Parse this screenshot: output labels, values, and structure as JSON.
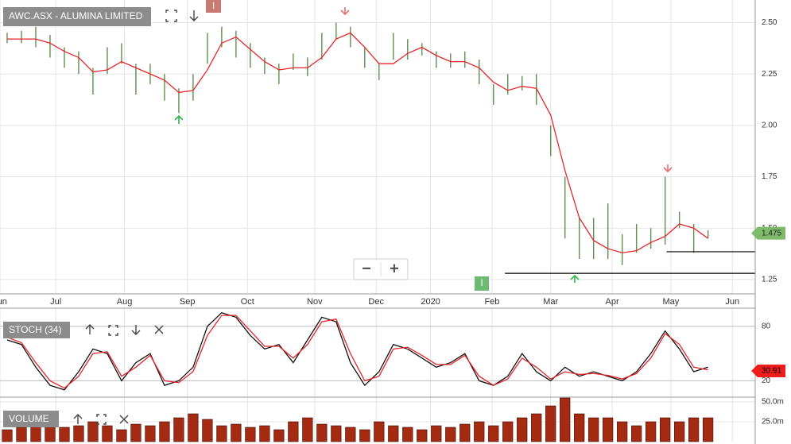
{
  "chart_data": [
    {
      "type": "hilo",
      "title": "AWC.ASX - ALUMINA LIMITED",
      "color": "#5f8f4f",
      "x": [
        0.5,
        1.5,
        2.5,
        3.5,
        4.5,
        5.5,
        6.5,
        7.5,
        8.5,
        9.5,
        10.5,
        11.5,
        12.5,
        13.5,
        14.5,
        15.5,
        16.5,
        17.5,
        18.5,
        19.5,
        20.5,
        21.5,
        22.5,
        23.5,
        24.5,
        25.5,
        26.5,
        27.5,
        28.5,
        29.5,
        30.5,
        31.5,
        32.5,
        33.5,
        34.5,
        35.5,
        36.5,
        37.5,
        38.5,
        39.5,
        40.5,
        41.5,
        42.5,
        43.5,
        44.5,
        45.5,
        46.5,
        47.5,
        48.5,
        49.5
      ],
      "high": [
        2.45,
        2.46,
        2.48,
        2.44,
        2.38,
        2.36,
        2.28,
        2.38,
        2.4,
        2.3,
        2.3,
        2.25,
        2.18,
        2.25,
        2.45,
        2.48,
        2.46,
        2.4,
        2.33,
        2.3,
        2.35,
        2.33,
        2.45,
        2.5,
        2.48,
        2.38,
        2.3,
        2.45,
        2.42,
        2.4,
        2.36,
        2.35,
        2.36,
        2.32,
        2.2,
        2.25,
        2.24,
        2.25,
        2.0,
        1.75,
        1.55,
        1.55,
        1.62,
        1.47,
        1.52,
        1.5,
        1.75,
        1.58,
        1.52,
        1.49
      ],
      "low": [
        2.4,
        2.4,
        2.38,
        2.33,
        2.28,
        2.25,
        2.15,
        2.25,
        2.3,
        2.15,
        2.2,
        2.12,
        2.06,
        2.12,
        2.3,
        2.38,
        2.33,
        2.28,
        2.25,
        2.2,
        2.27,
        2.24,
        2.32,
        2.42,
        2.38,
        2.28,
        2.22,
        2.32,
        2.32,
        2.34,
        2.28,
        2.28,
        2.28,
        2.2,
        2.1,
        2.15,
        2.17,
        2.1,
        1.85,
        1.45,
        1.35,
        1.35,
        1.35,
        1.32,
        1.38,
        1.4,
        1.42,
        1.5,
        1.38,
        1.45
      ],
      "series": [
        {
          "name": "MA",
          "color": "#e8252a",
          "values": [
            2.42,
            2.42,
            2.42,
            2.4,
            2.36,
            2.33,
            2.26,
            2.27,
            2.31,
            2.28,
            2.25,
            2.22,
            2.16,
            2.17,
            2.27,
            2.4,
            2.43,
            2.37,
            2.31,
            2.27,
            2.28,
            2.28,
            2.33,
            2.42,
            2.45,
            2.38,
            2.3,
            2.3,
            2.35,
            2.38,
            2.34,
            2.31,
            2.31,
            2.28,
            2.21,
            2.17,
            2.19,
            2.18,
            2.05,
            1.78,
            1.55,
            1.44,
            1.4,
            1.38,
            1.39,
            1.43,
            1.46,
            1.52,
            1.5,
            1.45
          ]
        }
      ],
      "xlim": [
        0,
        52.8
      ],
      "xticks": [
        {
          "value": 0,
          "label": "Jun"
        },
        {
          "value": 3.9,
          "label": "Jul"
        },
        {
          "value": 8.7,
          "label": "Aug"
        },
        {
          "value": 13.1,
          "label": "Sep"
        },
        {
          "value": 17.3,
          "label": "Oct"
        },
        {
          "value": 22,
          "label": "Nov"
        },
        {
          "value": 26.3,
          "label": "Dec"
        },
        {
          "value": 30.1,
          "label": "2020"
        },
        {
          "value": 34.4,
          "label": "Feb"
        },
        {
          "value": 38.5,
          "label": "Mar"
        },
        {
          "value": 42.8,
          "label": "Apr"
        },
        {
          "value": 46.9,
          "label": "May"
        },
        {
          "value": 51.2,
          "label": "Jun"
        }
      ],
      "ylim": [
        1.18,
        2.61
      ],
      "yticks": [
        {
          "value": 2.5,
          "label": "2.50"
        },
        {
          "value": 2.25,
          "label": "2.25"
        },
        {
          "value": 2.0,
          "label": "2.00"
        },
        {
          "value": 1.75,
          "label": "1.75"
        },
        {
          "value": 1.5,
          "label": "1.50"
        },
        {
          "value": 1.25,
          "label": "1.25"
        }
      ],
      "levels": [
        {
          "value": 1.28,
          "from": 35.3
        },
        {
          "value": 1.385,
          "from": 46.6
        }
      ],
      "last": 1.475,
      "last_color": "#7dbb6a"
    },
    {
      "type": "line",
      "title": "STOCH (34)",
      "series": [
        {
          "name": "%K",
          "color": "#111111",
          "values": [
            65,
            60,
            35,
            15,
            10,
            30,
            55,
            50,
            20,
            40,
            50,
            15,
            20,
            35,
            80,
            95,
            90,
            70,
            55,
            60,
            40,
            65,
            90,
            85,
            40,
            15,
            30,
            60,
            55,
            45,
            35,
            40,
            50,
            20,
            15,
            25,
            50,
            30,
            20,
            35,
            25,
            30,
            25,
            20,
            30,
            50,
            75,
            55,
            30,
            35
          ]
        },
        {
          "name": "%D",
          "color": "#e8252a",
          "values": [
            68,
            62,
            40,
            20,
            12,
            25,
            50,
            52,
            25,
            35,
            48,
            20,
            18,
            30,
            70,
            92,
            92,
            75,
            58,
            58,
            45,
            60,
            85,
            88,
            50,
            20,
            25,
            55,
            57,
            48,
            38,
            38,
            48,
            25,
            15,
            22,
            45,
            35,
            22,
            30,
            27,
            28,
            26,
            22,
            28,
            45,
            72,
            60,
            35,
            32
          ]
        }
      ],
      "ylim": [
        2,
        100
      ],
      "yticks": [
        80,
        20
      ],
      "last": 30.91,
      "last_color": "#ee1c1c"
    },
    {
      "type": "bar",
      "title": "VOLUME",
      "color": "#a52a12",
      "values": [
        15,
        18,
        20,
        22,
        18,
        20,
        25,
        20,
        15,
        22,
        20,
        25,
        30,
        35,
        28,
        20,
        22,
        18,
        20,
        15,
        25,
        30,
        22,
        20,
        18,
        15,
        25,
        20,
        18,
        15,
        20,
        18,
        22,
        25,
        20,
        25,
        30,
        35,
        45,
        55,
        35,
        30,
        30,
        25,
        20,
        25,
        30,
        25,
        30,
        30
      ],
      "ylim": [
        0,
        56
      ],
      "yticks": [
        {
          "value": 50,
          "label": "50.0m"
        },
        {
          "value": 25,
          "label": "25.0m"
        }
      ]
    }
  ],
  "ui": {
    "event_markers": [
      "I",
      "I"
    ],
    "zoom": [
      "−",
      "+"
    ]
  }
}
